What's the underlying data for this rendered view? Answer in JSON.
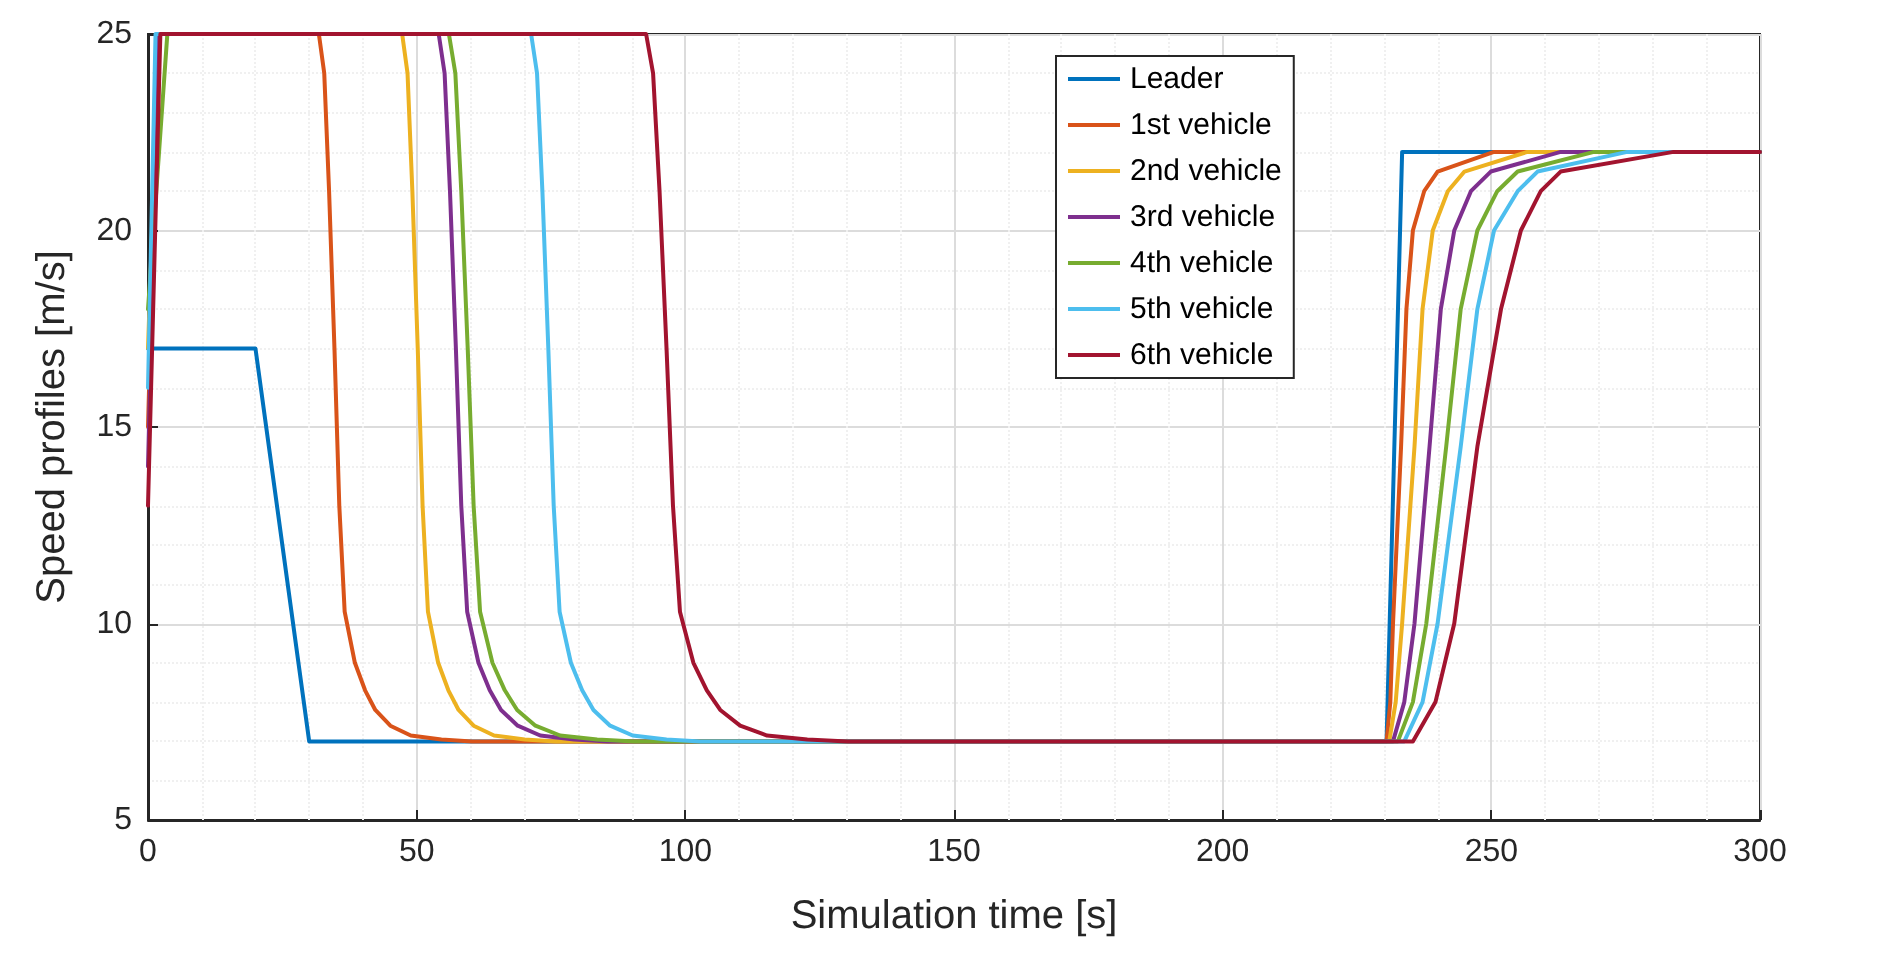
{
  "chart_data": {
    "type": "line",
    "xlabel": "Simulation time [s]",
    "ylabel": "Speed profiles [m/s]",
    "xlim": [
      0,
      300
    ],
    "xticks": [
      0,
      50,
      100,
      150,
      200,
      250,
      300
    ],
    "ylim": [
      5,
      25
    ],
    "yticks": [
      5,
      10,
      15,
      20,
      25
    ],
    "grid": true,
    "legend": "top right",
    "marker": "none",
    "line_style": "solid",
    "series": [
      {
        "name": "Leader",
        "color": "#0072bd",
        "x": [
          0,
          20,
          30,
          230.5,
          233.4,
          300
        ],
        "values": [
          17,
          17,
          7,
          7,
          22,
          22
        ]
      },
      {
        "name": "1st vehicle",
        "color": "#d95319",
        "x": [
          0,
          2,
          31.8,
          32.8,
          33.7,
          34.7,
          35.6,
          36.6,
          38.5,
          40.4,
          42.3,
          45.1,
          48.9,
          54.6,
          60.3,
          230.5,
          231.2,
          231.7,
          233.2,
          234.2,
          235.4,
          237.5,
          240.0,
          250.5,
          300
        ],
        "values": [
          15,
          25,
          25,
          24,
          21,
          17,
          13,
          10.3,
          9,
          8.3,
          7.8,
          7.4,
          7.15,
          7.05,
          7,
          7,
          8,
          10,
          14.5,
          18,
          20,
          21,
          21.5,
          22,
          22
        ]
      },
      {
        "name": "2nd vehicle",
        "color": "#edb120",
        "x": [
          0,
          2,
          47.3,
          48.3,
          49.2,
          50.2,
          51.1,
          52.1,
          54,
          55.9,
          57.8,
          60.6,
          64.4,
          70.1,
          75.8,
          231.0,
          232.2,
          233.4,
          235.7,
          237.2,
          239.1,
          241.9,
          245.0,
          256.7,
          300
        ],
        "values": [
          17,
          25,
          25,
          24,
          21,
          17,
          13,
          10.3,
          9,
          8.3,
          7.8,
          7.4,
          7.15,
          7.05,
          7,
          7,
          8,
          10,
          14.5,
          18,
          20,
          21,
          21.5,
          22,
          22
        ]
      },
      {
        "name": "3rd vehicle",
        "color": "#7e2f8e",
        "x": [
          0,
          2,
          54.1,
          55.2,
          56.2,
          57.3,
          58.3,
          59.4,
          61.5,
          63.6,
          65.7,
          68.8,
          73,
          79.3,
          85.6,
          231.7,
          233.8,
          235.7,
          238.5,
          240.6,
          243.1,
          246.2,
          249.9,
          262.9,
          300
        ],
        "values": [
          14,
          25,
          25,
          24,
          21,
          17,
          13,
          10.3,
          9,
          8.3,
          7.8,
          7.4,
          7.15,
          7.05,
          7,
          7,
          8,
          10,
          14.5,
          18,
          20,
          21,
          21.5,
          22,
          22
        ]
      },
      {
        "name": "4th vehicle",
        "color": "#77ac30",
        "x": [
          0,
          3.6,
          56,
          57.2,
          58.3,
          59.5,
          60.6,
          61.8,
          64.1,
          66.4,
          68.7,
          72.1,
          76.7,
          83.6,
          90.5,
          232.6,
          235.4,
          237.9,
          241.6,
          244.3,
          247.4,
          251.1,
          254.9,
          269.1,
          300
        ],
        "values": [
          18,
          25,
          25,
          24,
          21,
          17,
          13,
          10.3,
          9,
          8.3,
          7.8,
          7.4,
          7.15,
          7.05,
          7,
          7,
          8,
          10,
          14.5,
          18,
          20,
          21,
          21.5,
          22,
          22
        ]
      },
      {
        "name": "5th vehicle",
        "color": "#4dbeee",
        "x": [
          0,
          1.4,
          71.3,
          72.4,
          73.4,
          74.5,
          75.5,
          76.6,
          78.7,
          80.8,
          82.9,
          86,
          90.2,
          96.5,
          102.8,
          233.8,
          237.2,
          240.0,
          244.3,
          247.4,
          250.5,
          254.9,
          258.6,
          275.3,
          300
        ],
        "values": [
          16,
          25,
          25,
          24,
          21,
          17,
          13,
          10.3,
          9,
          8.3,
          7.8,
          7.4,
          7.15,
          7.05,
          7,
          7,
          8,
          10,
          14.5,
          18,
          20,
          21,
          21.5,
          22,
          22
        ]
      },
      {
        "name": "6th vehicle",
        "color": "#a2142f",
        "x": [
          0,
          2.3,
          92.7,
          94,
          95.2,
          96.5,
          97.7,
          99,
          101.5,
          104,
          106.5,
          110.2,
          115.2,
          122.7,
          130.2,
          235.4,
          239.6,
          243.1,
          247.4,
          251.8,
          255.5,
          259.2,
          262.9,
          283.9,
          300
        ],
        "values": [
          13,
          25,
          25,
          24,
          21,
          17,
          13,
          10.3,
          9,
          8.3,
          7.8,
          7.4,
          7.15,
          7.05,
          7,
          7,
          8,
          10,
          14.5,
          18,
          20,
          21,
          21.5,
          22,
          22
        ]
      }
    ]
  }
}
